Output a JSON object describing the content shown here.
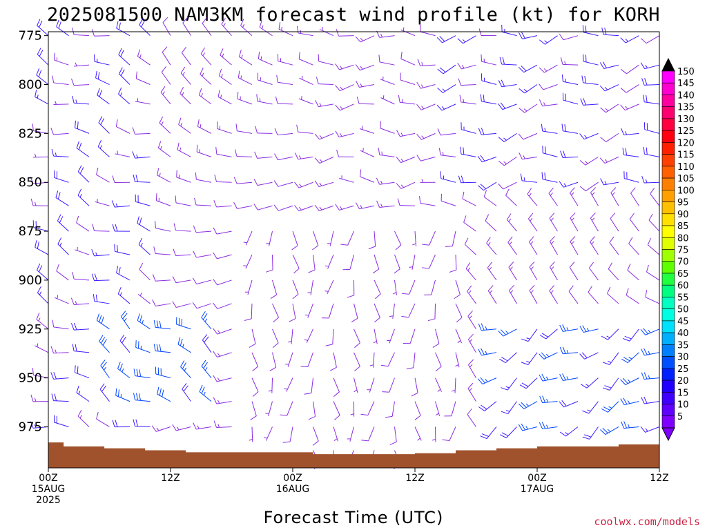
{
  "chart_data": {
    "type": "wind barb time-height section",
    "title": "2025081500 NAM3KM forecast wind profile (kt) for KORH",
    "xlabel": "Forecast Time (UTC)",
    "ylabel": "",
    "credit": "coolwx.com/models",
    "x_ticks": [
      {
        "hour": 0,
        "line1": "00Z",
        "line2": "15AUG",
        "line3": "2025"
      },
      {
        "hour": 12,
        "line1": "12Z",
        "line2": "",
        "line3": ""
      },
      {
        "hour": 24,
        "line1": "00Z",
        "line2": "16AUG",
        "line3": ""
      },
      {
        "hour": 36,
        "line1": "12Z",
        "line2": "",
        "line3": ""
      },
      {
        "hour": 48,
        "line1": "00Z",
        "line2": "17AUG",
        "line3": ""
      },
      {
        "hour": 60,
        "line1": "12Z",
        "line2": "",
        "line3": ""
      }
    ],
    "xlim_hours": [
      0,
      60
    ],
    "y_ticks": [
      775,
      800,
      825,
      850,
      875,
      900,
      925,
      950,
      975
    ],
    "ylim_hPa": [
      773,
      996
    ],
    "levels_hPa": [
      775,
      790,
      800,
      810,
      825,
      837,
      850,
      862,
      875,
      887,
      900,
      912,
      925,
      937,
      950,
      962,
      975,
      987
    ],
    "time_step_hours": 2,
    "wind_regimes": [
      {
        "hours": [
          0,
          10
        ],
        "levels": "all",
        "direction_deg": 290,
        "speed_kt": [
          5,
          20
        ]
      },
      {
        "hours": [
          6,
          16
        ],
        "levels": "925-962 hPa",
        "direction_deg": 300,
        "speed_kt": [
          20,
          30
        ]
      },
      {
        "hours": [
          20,
          40
        ],
        "levels": "875-987 hPa",
        "direction_deg": 180,
        "speed_kt": [
          5,
          10
        ]
      },
      {
        "hours": [
          26,
          40
        ],
        "levels": "775-850 hPa",
        "direction_deg": 270,
        "speed_kt": [
          5,
          15
        ]
      },
      {
        "hours": [
          40,
          60
        ],
        "levels": "775-850 hPa",
        "direction_deg": 260,
        "speed_kt": [
          10,
          20
        ]
      },
      {
        "hours": [
          44,
          60
        ],
        "levels": "925-975 hPa",
        "direction_deg": 240,
        "speed_kt": [
          15,
          25
        ]
      }
    ],
    "surface_pressure_hPa": [
      {
        "hour": 0,
        "p": 983
      },
      {
        "hour": 1.5,
        "p": 985
      },
      {
        "hour": 5.5,
        "p": 986
      },
      {
        "hour": 9.5,
        "p": 987
      },
      {
        "hour": 13.5,
        "p": 988
      },
      {
        "hour": 20,
        "p": 988
      },
      {
        "hour": 26,
        "p": 989
      },
      {
        "hour": 36,
        "p": 988.5
      },
      {
        "hour": 40,
        "p": 987
      },
      {
        "hour": 44,
        "p": 986
      },
      {
        "hour": 48,
        "p": 985
      },
      {
        "hour": 56,
        "p": 984
      },
      {
        "hour": 60,
        "p": 983
      }
    ],
    "colorbar": {
      "labels": [
        150,
        145,
        140,
        135,
        130,
        125,
        120,
        115,
        110,
        105,
        100,
        95,
        90,
        85,
        80,
        75,
        70,
        65,
        60,
        55,
        50,
        45,
        40,
        35,
        30,
        25,
        20,
        15,
        10,
        5
      ],
      "colors": [
        "#ff00ff",
        "#ff00d0",
        "#ff00a0",
        "#ff0070",
        "#ff0040",
        "#ff0010",
        "#ff2000",
        "#ff4000",
        "#ff6000",
        "#ff8000",
        "#ffa000",
        "#ffc000",
        "#ffe000",
        "#ffff00",
        "#e0ff00",
        "#a0ff00",
        "#60ff00",
        "#20ff40",
        "#00ff80",
        "#00ffc0",
        "#00ffe0",
        "#00e0ff",
        "#00b0ff",
        "#0080ff",
        "#0050ff",
        "#0020ff",
        "#2000ff",
        "#4000ff",
        "#6000ff",
        "#8000ff"
      ],
      "top_arrow_color": "#000000",
      "bottom_arrow_color": "#8000ff"
    },
    "colors": {
      "ground": "#a0522d",
      "barb_light": "#8a2be2",
      "barb_mid": "#3a1aff",
      "barb_strong": "#0044ff"
    }
  }
}
